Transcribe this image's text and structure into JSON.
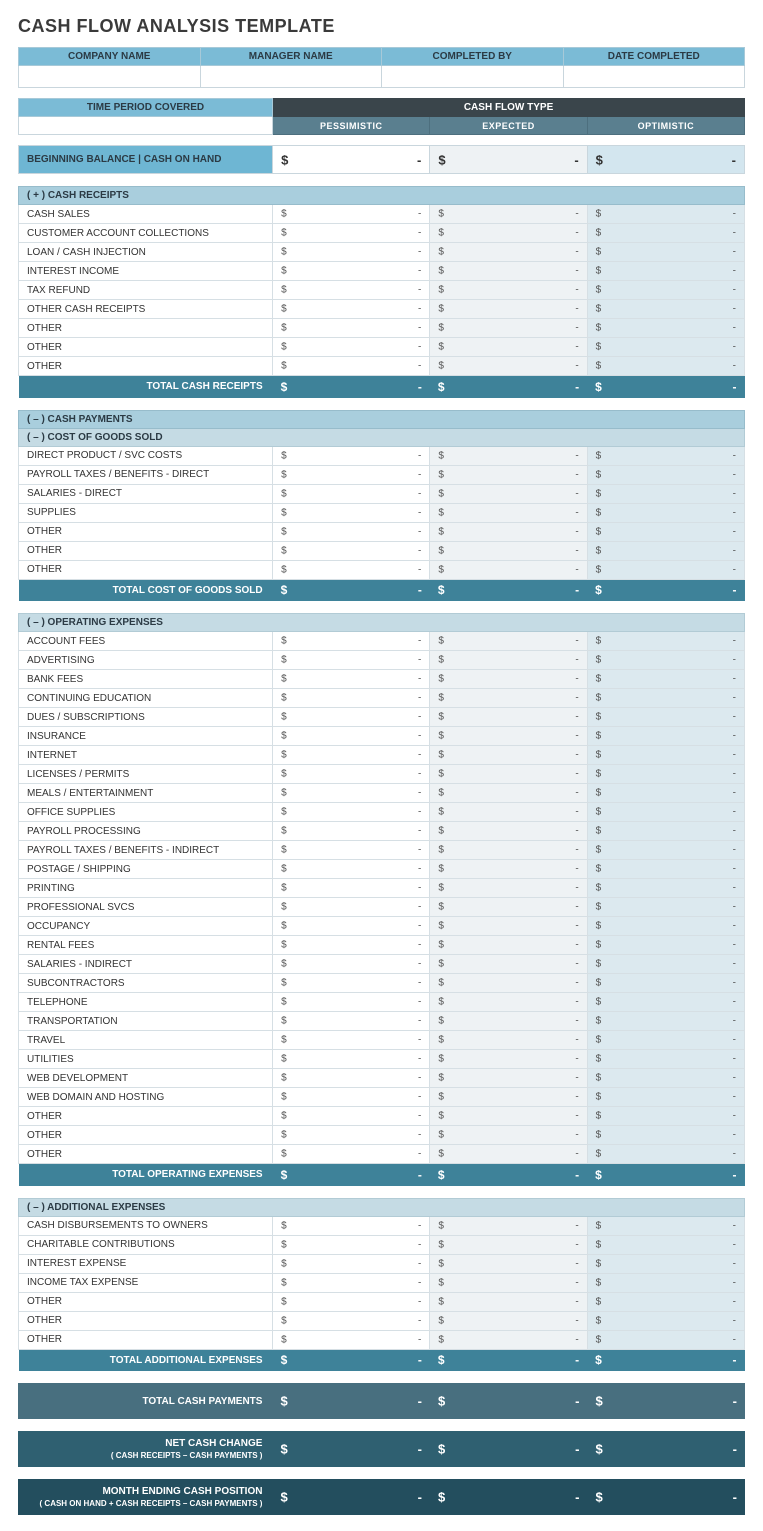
{
  "title": "CASH FLOW ANALYSIS TEMPLATE",
  "info_headers": [
    "COMPANY NAME",
    "MANAGER NAME",
    "COMPLETED BY",
    "DATE COMPLETED"
  ],
  "period_label": "TIME PERIOD COVERED",
  "cash_flow_type_label": "CASH FLOW TYPE",
  "scenarios": [
    "PESSIMISTIC",
    "EXPECTED",
    "OPTIMISTIC"
  ],
  "currency_symbol": "$",
  "empty_value": "-",
  "beginning_balance": {
    "label": "BEGINNING BALANCE  |  CASH ON HAND"
  },
  "receipts": {
    "header": "( + )   CASH RECEIPTS",
    "rows": [
      "CASH SALES",
      "CUSTOMER ACCOUNT COLLECTIONS",
      "LOAN / CASH INJECTION",
      "INTEREST INCOME",
      "TAX REFUND",
      "OTHER CASH RECEIPTS",
      "OTHER",
      "OTHER",
      "OTHER"
    ],
    "total_label": "TOTAL CASH RECEIPTS"
  },
  "payments_header": "( – )   CASH PAYMENTS",
  "cogs": {
    "header": "( – )   COST OF GOODS SOLD",
    "rows": [
      "DIRECT PRODUCT / SVC COSTS",
      "PAYROLL TAXES / BENEFITS - DIRECT",
      "SALARIES - DIRECT",
      "SUPPLIES",
      "OTHER",
      "OTHER",
      "OTHER"
    ],
    "total_label": "TOTAL COST OF GOODS SOLD"
  },
  "opex": {
    "header": "( – )   OPERATING EXPENSES",
    "rows": [
      "ACCOUNT FEES",
      "ADVERTISING",
      "BANK FEES",
      "CONTINUING EDUCATION",
      "DUES / SUBSCRIPTIONS",
      "INSURANCE",
      "INTERNET",
      "LICENSES / PERMITS",
      "MEALS / ENTERTAINMENT",
      "OFFICE SUPPLIES",
      "PAYROLL PROCESSING",
      "PAYROLL TAXES / BENEFITS - INDIRECT",
      "POSTAGE / SHIPPING",
      "PRINTING",
      "PROFESSIONAL SVCS",
      "OCCUPANCY",
      "RENTAL FEES",
      "SALARIES - INDIRECT",
      "SUBCONTRACTORS",
      "TELEPHONE",
      "TRANSPORTATION",
      "TRAVEL",
      "UTILITIES",
      "WEB DEVELOPMENT",
      "WEB DOMAIN AND HOSTING",
      "OTHER",
      "OTHER",
      "OTHER"
    ],
    "total_label": "TOTAL OPERATING EXPENSES"
  },
  "addl": {
    "header": "( – )   ADDITIONAL EXPENSES",
    "rows": [
      "CASH DISBURSEMENTS TO OWNERS",
      "CHARITABLE CONTRIBUTIONS",
      "INTEREST EXPENSE",
      "INCOME TAX EXPENSE",
      "OTHER",
      "OTHER",
      "OTHER"
    ],
    "total_label": "TOTAL ADDITIONAL EXPENSES"
  },
  "total_payments_label": "TOTAL CASH PAYMENTS",
  "net_change": {
    "label": "NET CASH CHANGE",
    "sub": "( CASH RECEIPTS – CASH PAYMENTS )"
  },
  "ending_position": {
    "label": "MONTH ENDING CASH POSITION",
    "sub": "( CASH ON HAND + CASH RECEIPTS – CASH PAYMENTS )"
  },
  "colors": {
    "header_blue": "#7bbbd6",
    "dark_header": "#3a454b",
    "scenario_bg": "#5a7f8f",
    "section_hdr": "#a9cedd",
    "subsection_hdr": "#c5dbe4",
    "col2_bg": "#eef2f4",
    "col3_bg": "#dce9ef",
    "total_teal": "#3e8299",
    "summary1": "#486f7f",
    "summary2": "#2f6071",
    "summary3": "#234e5e"
  }
}
